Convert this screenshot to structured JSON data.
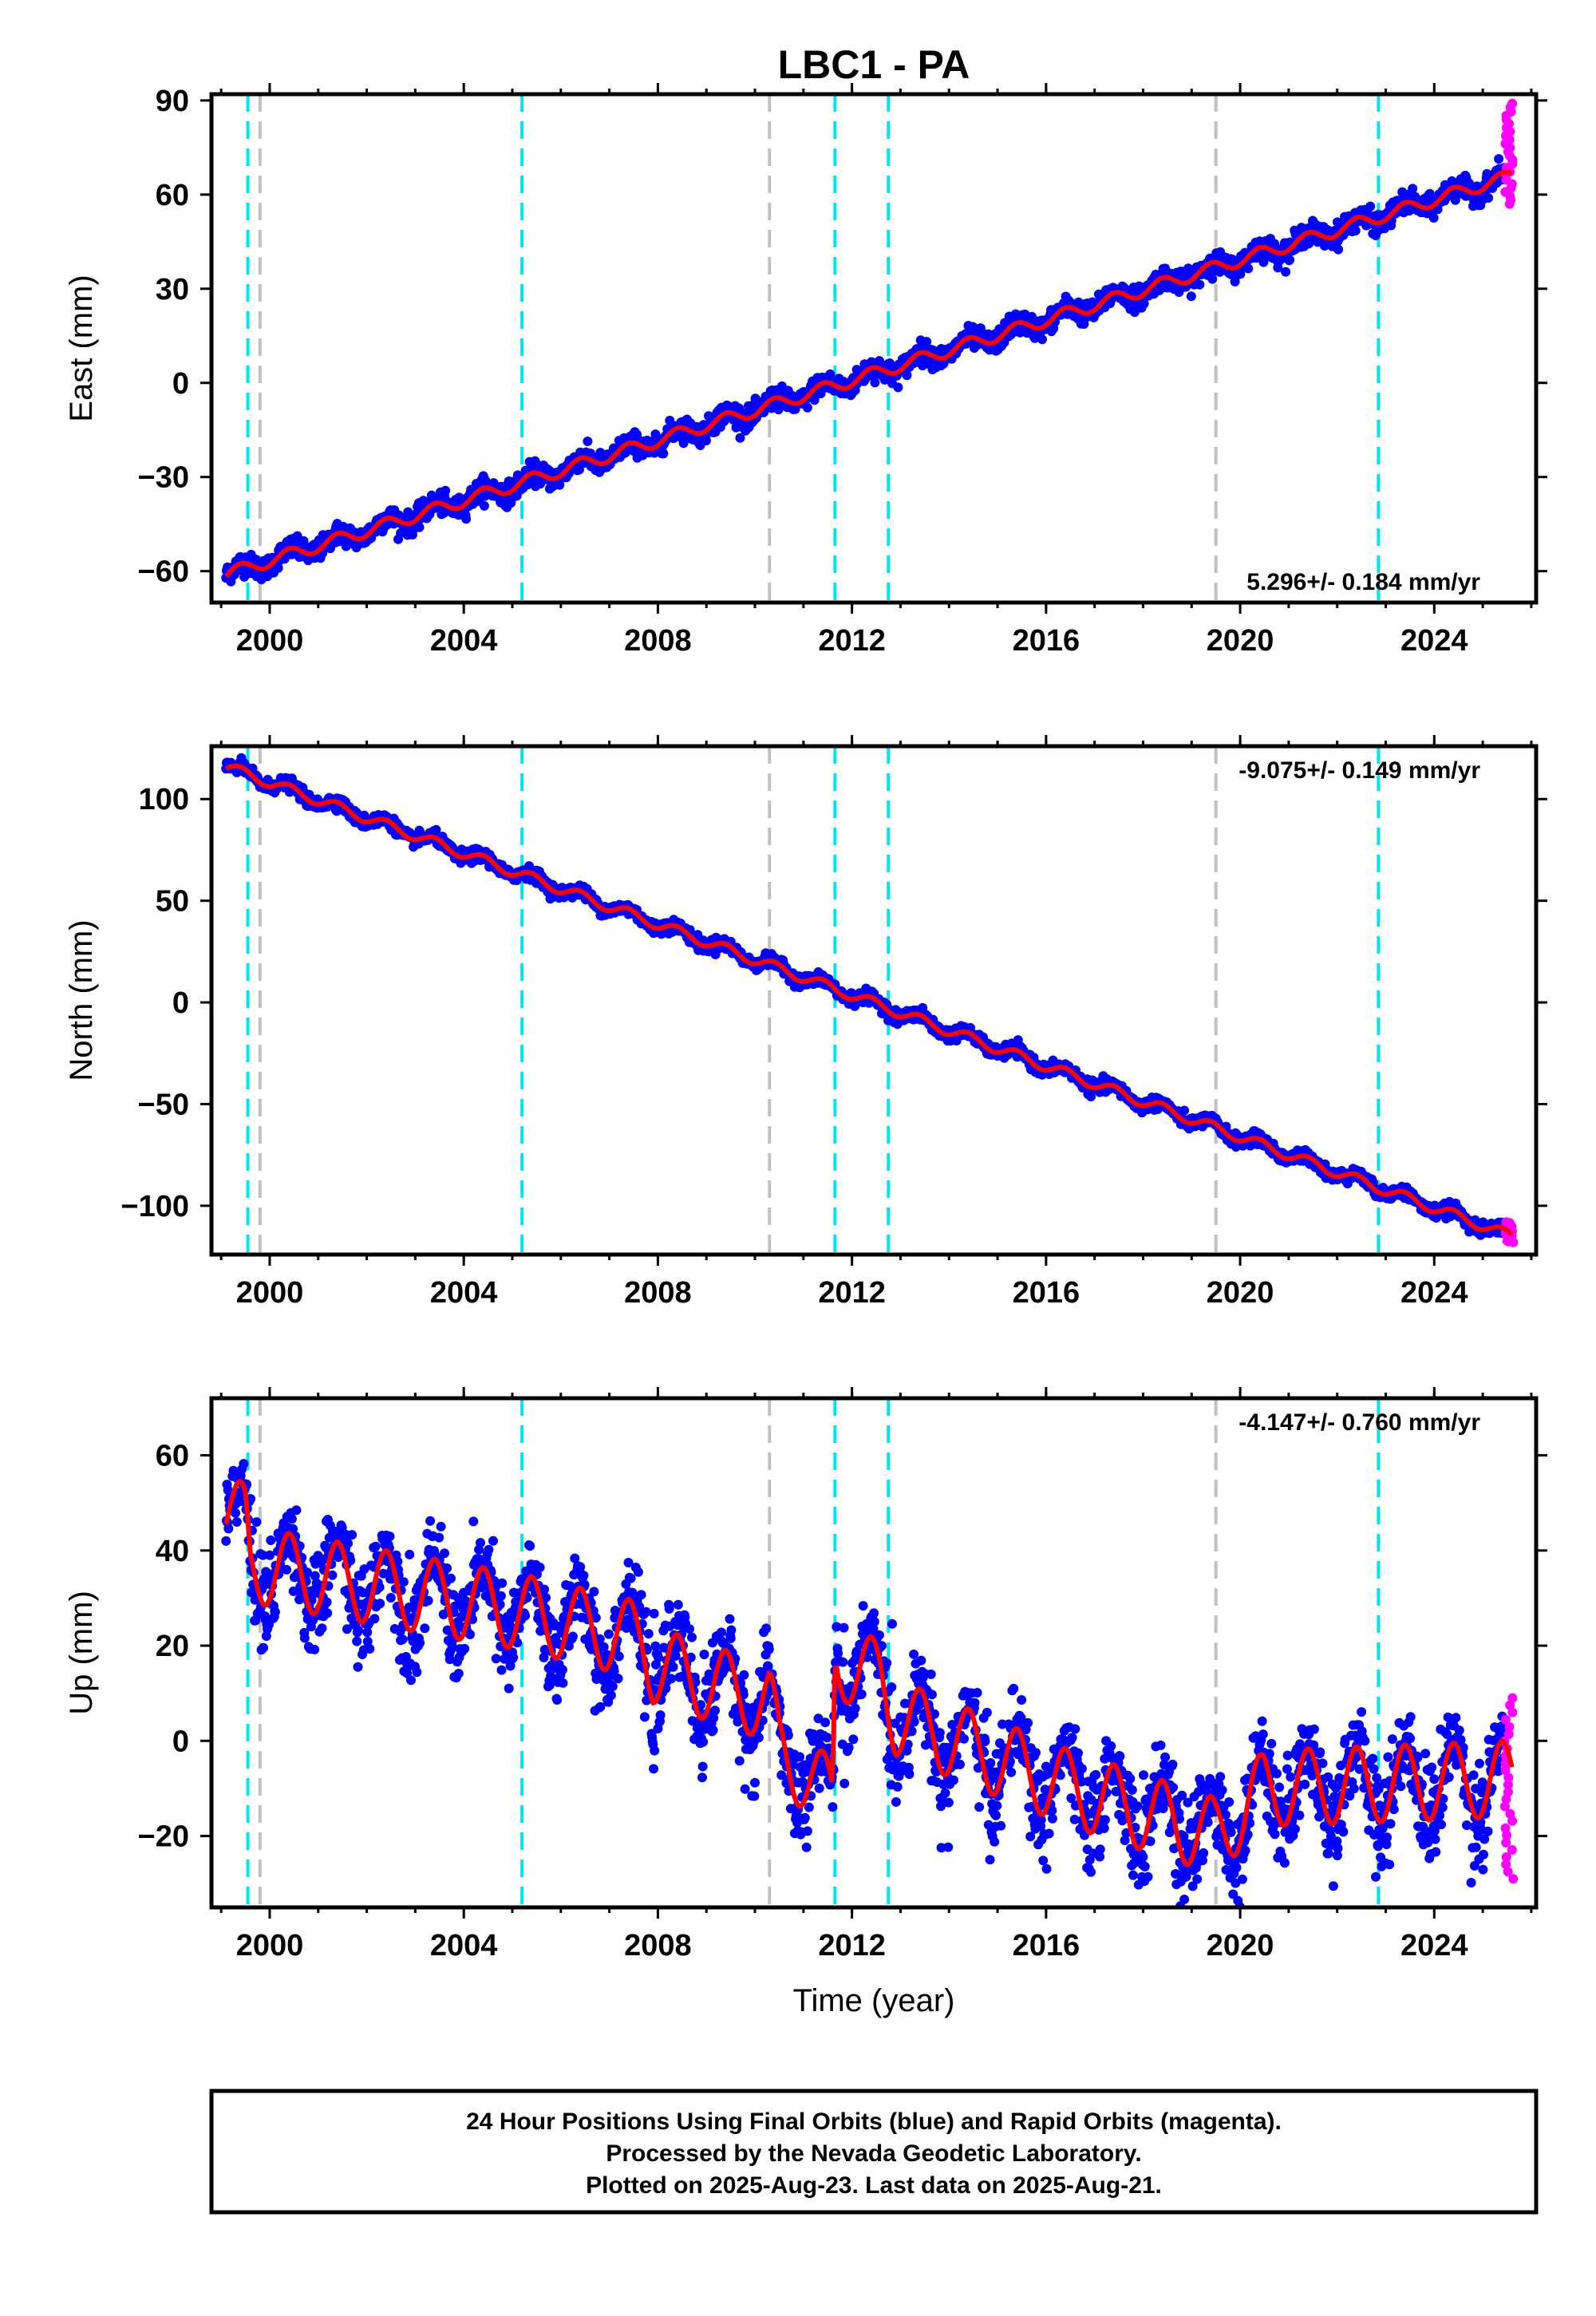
{
  "figure": {
    "title": "LBC1 - PA",
    "footer_lines": [
      "24 Hour Positions Using Final Orbits (blue) and Rapid Orbits (magenta).",
      "Processed by the Nevada Geodetic Laboratory.",
      "Plotted on 2025-Aug-23. Last data on 2025-Aug-21."
    ]
  },
  "colors": {
    "final_orbits": "#0000ff",
    "rapid_orbits": "#ff00ff",
    "model_fit": "#ff0000",
    "equipment_change": "#00e5ee",
    "earthquake": "#c0c0c0"
  },
  "chart_data": [
    {
      "type": "scatter",
      "name": "east",
      "ylabel": "East (mm)",
      "xlabel": "",
      "xlim": [
        1998.8,
        2026.1
      ],
      "ylim": [
        -70,
        92
      ],
      "xticks": [
        2000,
        2004,
        2008,
        2012,
        2016,
        2020,
        2024
      ],
      "xtick_labels": [
        "2000",
        "2004",
        "2008",
        "2012",
        "2016",
        "2020",
        "2024"
      ],
      "yticks": [
        -60,
        -30,
        0,
        30,
        60,
        90
      ],
      "ytick_labels": [
        "−60",
        "−30",
        "0",
        "30",
        "60",
        "90"
      ],
      "rate_text": "5.296+/- 0.184 mm/yr",
      "rate_position": "bottom-right",
      "trend": {
        "x": [
          1999.1,
          2025.6
        ],
        "y": [
          -61,
          66
        ]
      },
      "seasonal_amp": 2.0,
      "scatter_noise": 2.8,
      "rapid_orbits": {
        "x": [
          2025.45,
          2025.63
        ],
        "y": [
          57,
          89
        ]
      },
      "vlines_cyan": [
        1999.55,
        2005.2,
        2011.65,
        2012.75,
        2022.85
      ],
      "vlines_gray": [
        1999.8,
        2010.3,
        2019.5
      ]
    },
    {
      "type": "scatter",
      "name": "north",
      "ylabel": "North (mm)",
      "xlabel": "",
      "xlim": [
        1998.8,
        2026.1
      ],
      "ylim": [
        -124,
        126
      ],
      "xticks": [
        2000,
        2004,
        2008,
        2012,
        2016,
        2020,
        2024
      ],
      "xtick_labels": [
        "2000",
        "2004",
        "2008",
        "2012",
        "2016",
        "2020",
        "2024"
      ],
      "yticks": [
        -100,
        -50,
        0,
        50,
        100
      ],
      "ytick_labels": [
        "−100",
        "−50",
        "0",
        "50",
        "100"
      ],
      "rate_text": "-9.075+/- 0.149 mm/yr",
      "rate_position": "top-right",
      "trend": {
        "x": [
          1999.1,
          2025.6
        ],
        "y": [
          116,
          -115
        ]
      },
      "seasonal_amp": 2.5,
      "scatter_noise": 2.5,
      "rapid_orbits": {
        "x": [
          2025.45,
          2025.63
        ],
        "y": [
          -118,
          -108
        ]
      },
      "vlines_cyan": [
        1999.55,
        2005.2,
        2011.65,
        2012.75,
        2022.85
      ],
      "vlines_gray": [
        1999.8,
        2010.3,
        2019.5
      ]
    },
    {
      "type": "scatter",
      "name": "up",
      "ylabel": "Up (mm)",
      "xlabel": "Time (year)",
      "xlim": [
        1998.8,
        2026.1
      ],
      "ylim": [
        -35,
        72
      ],
      "xticks": [
        2000,
        2004,
        2008,
        2012,
        2016,
        2020,
        2024
      ],
      "xtick_labels": [
        "2000",
        "2004",
        "2008",
        "2012",
        "2016",
        "2020",
        "2024"
      ],
      "yticks": [
        -20,
        0,
        20,
        40,
        60
      ],
      "ytick_labels": [
        "−20",
        "0",
        "20",
        "40",
        "60"
      ],
      "rate_text": "-4.147+/- 0.760 mm/yr",
      "rate_position": "top-right",
      "trend": {
        "x": [
          1999.1,
          1999.5,
          1999.6,
          2005.2,
          2007.7,
          2007.9,
          2010.3,
          2010.5,
          2011.6,
          2011.65,
          2012.6,
          2012.9,
          2016.5,
          2019.5,
          2020.5,
          2025.6
        ],
        "y": [
          48,
          46,
          37,
          27,
          21,
          16,
          8,
          -2,
          -12,
          17,
          13,
          5,
          -10,
          -20,
          -10,
          -8
        ]
      },
      "seasonal_amp": 8.0,
      "scatter_noise": 7.0,
      "rapid_orbits": {
        "x": [
          2025.45,
          2025.63
        ],
        "y": [
          -29,
          9
        ]
      },
      "vlines_cyan": [
        1999.55,
        2005.2,
        2011.65,
        2012.75,
        2022.85
      ],
      "vlines_gray": [
        1999.8,
        2010.3,
        2019.5
      ]
    }
  ]
}
